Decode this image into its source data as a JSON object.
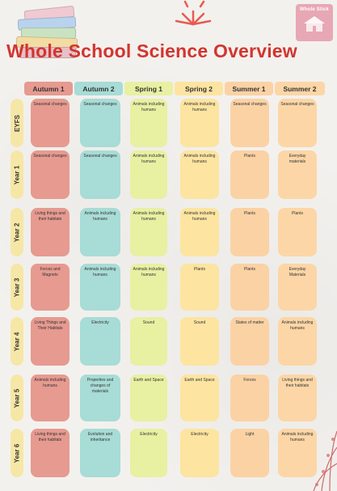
{
  "header": {
    "title": "Whole School Science Overview",
    "logo_text": "Whole Stick"
  },
  "colors": {
    "title": "#d2352f",
    "autumn1": "#e69a90",
    "autumn2": "#a8dcd6",
    "spring1": "#e8f0a2",
    "spring2": "#fde4a0",
    "summer1": "#fbd2a4",
    "summer2": "#fcd6a6",
    "year_label": "#f6e7a6"
  },
  "terms": [
    "Autumn 1",
    "Autumn 2",
    "Spring 1",
    "Spring 2",
    "Summer 1",
    "Summer 2"
  ],
  "years": [
    {
      "label": "EYFS",
      "topics": [
        "Seasonal changes",
        "Seasonal changes",
        "Animals including humans",
        "Animals including humans",
        "Seasonal changes",
        "Seasonal changes"
      ]
    },
    {
      "label": "Year 1",
      "topics": [
        "Seasonal changes",
        "Seasonal changes",
        "Animals including humans",
        "Animals including humans",
        "Plants",
        "Everyday materials"
      ]
    },
    {
      "label": "Year 2",
      "topics": [
        "Living things and their habitats",
        "Animals including humans",
        "Animals including humans",
        "Animals including humans",
        "Plants",
        "Plants"
      ]
    },
    {
      "label": "Year 3",
      "topics": [
        "Forces and Magnets",
        "Animals including humans",
        "Animals including humans",
        "Plants",
        "Plants",
        "Everyday Materials"
      ]
    },
    {
      "label": "Year 4",
      "topics": [
        "Living Things and Their Habitats",
        "Electricity",
        "Sound",
        "Sound",
        "States of matter",
        "Animals including humans"
      ]
    },
    {
      "label": "Year 5",
      "topics": [
        "Animals including humans",
        "Properties and changes of materials",
        "Earth and Space",
        "Earth and Space",
        "Forces",
        "Living things and their habitats"
      ]
    },
    {
      "label": "Year 6",
      "topics": [
        "Living things and their habitats",
        "Evolution and inheritance",
        "Electricity",
        "Electricity",
        "Light",
        "Animals including humans"
      ]
    }
  ]
}
